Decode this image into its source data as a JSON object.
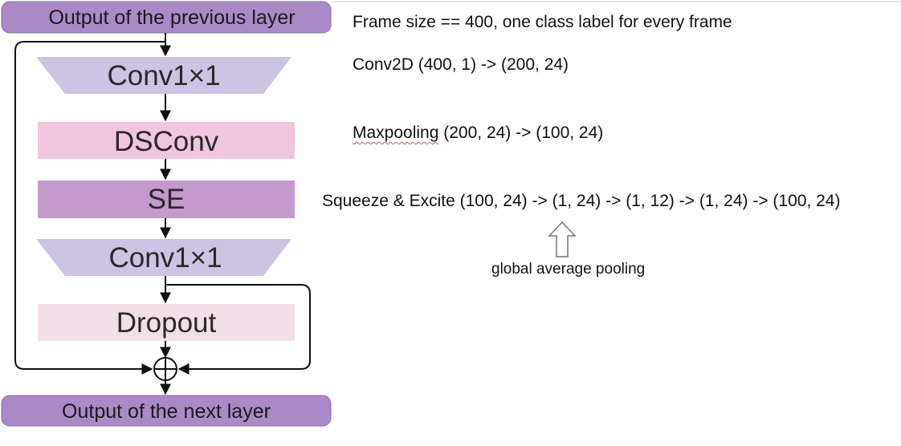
{
  "diagram": {
    "input_label": "Output of the previous layer",
    "output_label": "Output of the next layer",
    "blocks": [
      {
        "label": "Conv1×1",
        "shape": "trapezoid-down",
        "color": "#cdc3e2"
      },
      {
        "label": "DSConv",
        "shape": "rect",
        "color": "#efc6dd"
      },
      {
        "label": "SE",
        "shape": "rect",
        "color": "#c39acb"
      },
      {
        "label": "Conv1×1",
        "shape": "trapezoid-down",
        "color": "#cdc3e2"
      },
      {
        "label": "Dropout",
        "shape": "rect",
        "color": "#f1e0e8"
      }
    ],
    "io_color": "#a98ac7",
    "add_node_icon": "circled-plus-icon"
  },
  "notes": {
    "frame": "Frame size == 400, one class label for every frame",
    "conv2d": "Conv2D (400, 1) -> (200, 24)",
    "maxpool_word": "Maxpooling",
    "maxpool_rest": " (200, 24) -> (100, 24)",
    "squeeze": "Squeeze & Excite (100, 24) -> (1, 24) -> (1, 12) -> (1, 24) -> (100, 24)",
    "gap": "global average pooling",
    "gap_arrow_icon": "hollow-up-arrow-icon"
  }
}
